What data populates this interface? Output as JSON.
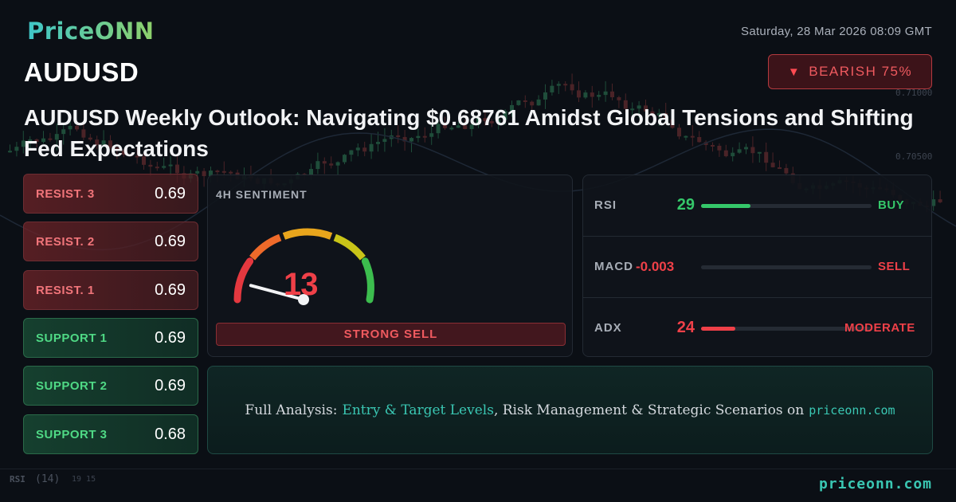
{
  "brand": "PriceONN",
  "symbol": "AUDUSD",
  "datetime": "Saturday, 28 Mar 2026 08:09 GMT",
  "badge": {
    "icon": "down-triangle-icon",
    "label": "BEARISH 75%"
  },
  "headline": "AUDUSD Weekly Outlook: Navigating $0.68761 Amidst Global Tensions and Shifting Fed Expectations",
  "levels": [
    {
      "name": "RESIST. 3",
      "value": "0.69",
      "kind": "resistance"
    },
    {
      "name": "RESIST. 2",
      "value": "0.69",
      "kind": "resistance"
    },
    {
      "name": "RESIST. 1",
      "value": "0.69",
      "kind": "resistance"
    },
    {
      "name": "SUPPORT 1",
      "value": "0.69",
      "kind": "support"
    },
    {
      "name": "SUPPORT 2",
      "value": "0.69",
      "kind": "support"
    },
    {
      "name": "SUPPORT 3",
      "value": "0.68",
      "kind": "support"
    }
  ],
  "sentiment": {
    "title": "4H SENTIMENT",
    "score": "13",
    "score_fraction": 0.13,
    "signal": "STRONG SELL"
  },
  "indicators": [
    {
      "name": "RSI",
      "value": "29",
      "level": 0.29,
      "signal": "BUY",
      "color": "#35c76a"
    },
    {
      "name": "MACD",
      "value": "-0.003",
      "level": 0,
      "signal": "SELL",
      "color": "#ef4048"
    },
    {
      "name": "ADX",
      "value": "24",
      "level": 0.2,
      "signal": "MODERATE",
      "color": "#ef4048"
    }
  ],
  "cta": {
    "prefix": "Full Analysis:",
    "highlight": "Entry & Target Levels",
    "middle": ", Risk Management & Strategic Scenarios on",
    "domain": "priceonn.com"
  },
  "footer": "priceonn.com",
  "background": {
    "price_labels": [
      "0.71000",
      "0.70500"
    ],
    "rsi_label": "RSI",
    "rsi_period": "(14)",
    "rsi_values": "19 15"
  },
  "colors": {
    "bearish": "#ef4048",
    "bullish": "#35c76a",
    "accent": "#3ac7b3"
  }
}
